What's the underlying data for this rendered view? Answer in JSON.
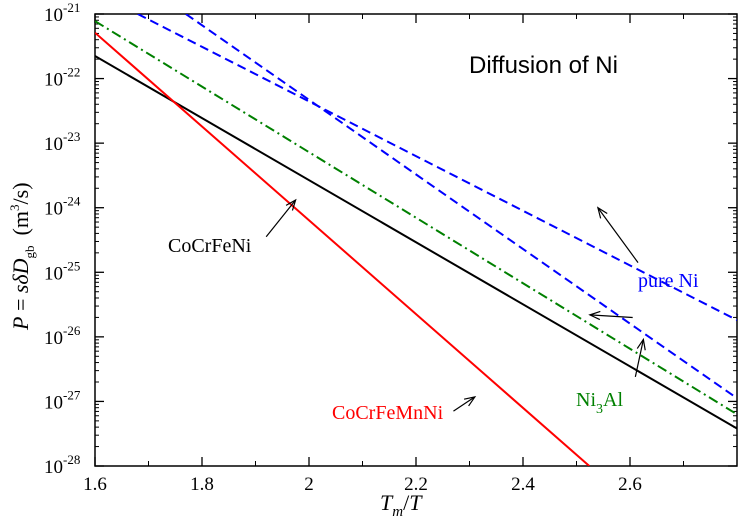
{
  "chart_data": {
    "type": "line",
    "title": "Diffusion of Ni",
    "xlabel": {
      "T": "T",
      "m": "m",
      "slash": "/",
      "T2": "T"
    },
    "ylabel": {
      "P": "P",
      "eq": " = ",
      "s": "s",
      "delta": "δ",
      "D": "D",
      "gb": "gb",
      "units_open": "(m",
      "units_exp": "3",
      "units_close": "/s)"
    },
    "xlim": [
      1.6,
      2.8
    ],
    "ylim_log10": [
      -28,
      -21
    ],
    "x_ticks": [
      1.6,
      1.8,
      2.0,
      2.2,
      2.4,
      2.6
    ],
    "x_tick_labels": [
      "1.6",
      "1.8",
      "2",
      "2.2",
      "2.4",
      "2.6"
    ],
    "y_ticks_log10": [
      -28,
      -27,
      -26,
      -25,
      -24,
      -23,
      -22,
      -21
    ],
    "y_tick_base": "10",
    "y_tick_exponents": [
      "-28",
      "-27",
      "-26",
      "-25",
      "-24",
      "-23",
      "-22",
      "-21"
    ],
    "series": [
      {
        "name": "CoCrFeNi",
        "color": "#000000",
        "style": "solid",
        "x": [
          1.6,
          2.8
        ],
        "log10_y": [
          -21.65,
          -27.42
        ]
      },
      {
        "name": "CoCrFeMnNi",
        "color": "#ff0000",
        "style": "solid",
        "x": [
          1.6,
          2.524
        ],
        "log10_y": [
          -21.29,
          -28.0
        ]
      },
      {
        "name": "Ni3Al",
        "color": "#008000",
        "style": "dashdot",
        "x": [
          1.6,
          2.8
        ],
        "log10_y": [
          -21.11,
          -27.2
        ]
      },
      {
        "name": "pure Ni upper",
        "color": "#0000ff",
        "style": "dashed",
        "x": [
          1.68,
          2.8
        ],
        "log10_y": [
          -21.0,
          -25.74
        ]
      },
      {
        "name": "pure Ni lower",
        "color": "#0000ff",
        "style": "dashed",
        "x": [
          1.77,
          2.8
        ],
        "log10_y": [
          -21.0,
          -26.95
        ]
      }
    ],
    "annotations": [
      {
        "label": "CoCrFeNi",
        "color": "#000000"
      },
      {
        "label_main": "Ni",
        "label_sub": "3",
        "label_tail": "Al",
        "color": "#008000"
      },
      {
        "label": "CoCrFeMnNi",
        "color": "#ff0000"
      },
      {
        "label": "pure Ni",
        "color": "#0000ff"
      }
    ],
    "colors": {
      "axis": "#000000",
      "background": "#ffffff"
    }
  }
}
